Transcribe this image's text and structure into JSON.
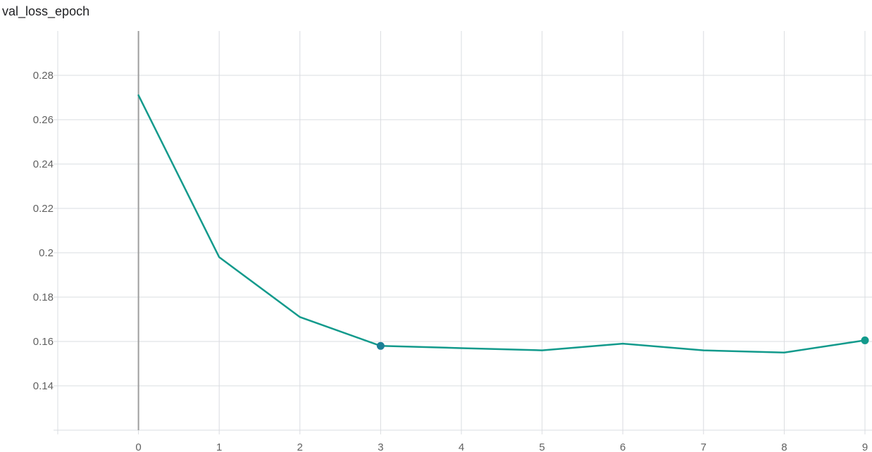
{
  "chart_data": {
    "type": "line",
    "title": "val_loss_epoch",
    "xlabel": "",
    "ylabel": "",
    "xlim": [
      -1,
      9
    ],
    "ylim": [
      0.12,
      0.3
    ],
    "x_ticks": [
      "0",
      "1",
      "2",
      "3",
      "4",
      "5",
      "6",
      "7",
      "8",
      "9"
    ],
    "y_ticks": [
      "0.14",
      "0.16",
      "0.18",
      "0.2",
      "0.22",
      "0.24",
      "0.26",
      "0.28"
    ],
    "grid": true,
    "highlighted_x": 0,
    "series": [
      {
        "color": "#129a8c",
        "x": [
          0,
          1,
          2,
          3,
          4,
          5,
          6,
          7,
          8,
          9
        ],
        "y": [
          0.271,
          0.198,
          0.171,
          0.158,
          0.157,
          0.156,
          0.159,
          0.156,
          0.155,
          0.1605
        ],
        "marked_points": [
          3,
          9
        ]
      }
    ],
    "colors": {
      "line": "#129a8c",
      "marker": "#1a7f96",
      "marker_end": "#129a8c",
      "grid": "#dadce0",
      "highlight_line": "#9e9e9e"
    }
  }
}
